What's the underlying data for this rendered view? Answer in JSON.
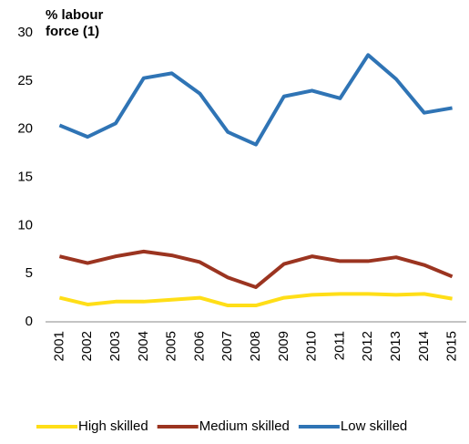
{
  "chart_data": {
    "type": "line",
    "y_label": "% labour force (1)",
    "categories": [
      "2001",
      "2002",
      "2003",
      "2004",
      "2005",
      "2006",
      "2007",
      "2008",
      "2009",
      "2010",
      "2011",
      "2012",
      "2013",
      "2014",
      "2015"
    ],
    "series": [
      {
        "name": "High skilled",
        "color": "#ffde17",
        "values": [
          2.5,
          1.8,
          2.1,
          2.1,
          2.3,
          2.5,
          1.7,
          1.7,
          2.5,
          2.8,
          2.9,
          2.9,
          2.8,
          2.9,
          2.4
        ]
      },
      {
        "name": "Medium skilled",
        "color": "#9b3420",
        "values": [
          6.8,
          6.1,
          6.8,
          7.3,
          6.9,
          6.2,
          4.6,
          3.6,
          6.0,
          6.8,
          6.3,
          6.3,
          6.7,
          5.9,
          4.7
        ]
      },
      {
        "name": "Low skilled",
        "color": "#2f74b5",
        "values": [
          20.4,
          19.2,
          20.6,
          25.3,
          25.8,
          23.7,
          19.7,
          18.4,
          23.4,
          24.0,
          23.2,
          27.7,
          25.2,
          21.7,
          22.2
        ]
      }
    ],
    "ylim": [
      0,
      30
    ],
    "yticks": [
      0,
      5,
      10,
      15,
      20,
      25,
      30
    ],
    "grid": false,
    "legend": "bottom"
  }
}
